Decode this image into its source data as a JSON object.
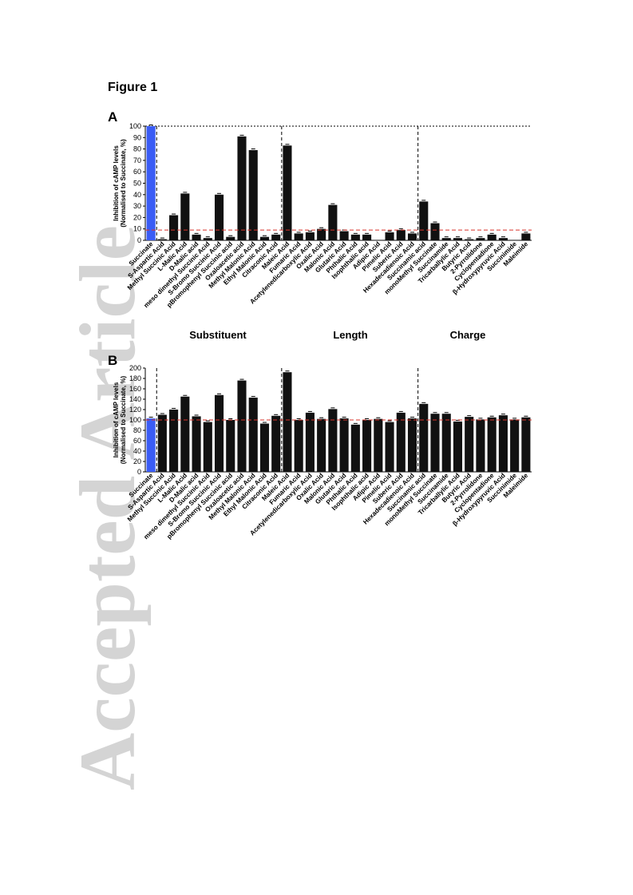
{
  "figure_label": "Figure 1",
  "watermark_text": "Accepted Article",
  "group_labels": [
    "Substituent",
    "Length",
    "Charge"
  ],
  "colors": {
    "bar": "#111111",
    "reference_bar": "#3a5cf5",
    "threshold_line": "#d9342b"
  },
  "chart_data": [
    {
      "type": "bar",
      "panel": "A",
      "ylabel": "Inhibition of cAMP levels (Normalised to Succinate, %)",
      "ylim": [
        0,
        100
      ],
      "yticks": [
        0,
        10,
        20,
        30,
        40,
        50,
        60,
        70,
        80,
        90,
        100
      ],
      "reference_line": 9,
      "top_dotted_line": 100,
      "groups": [
        {
          "label": "",
          "categories": [
            "Succinate"
          ]
        },
        {
          "label": "Substituent",
          "categories": [
            "S-Aspartic Acid",
            "Methyl Succinic Acid",
            "L-Malic Acid",
            "D-Malic acid",
            "meso dimethyl Succinic Acid",
            "S-Bromo Succinic Acid",
            "pBromophenyl Succinic acid",
            "Oxaloacetic acid",
            "Methyl Malonic Acid",
            "Ethyl Malonic Acid",
            "Citraconic Acid"
          ]
        },
        {
          "label": "Length",
          "categories": [
            "Maleic Acid",
            "Fumaric Acid",
            "Acetylenedicarboxylic Acid",
            "Oxalic Acid",
            "Malonic Acid",
            "Glutaric Acid",
            "Phthalic Acid",
            "Isophthalic acid",
            "Adipic Acid",
            "Pimelic Acid",
            "Suberic Acid",
            "Hexadecadienoic Acid"
          ]
        },
        {
          "label": "Charge",
          "categories": [
            "Succinamic acid",
            "monoMethyl Succinate",
            "Succinamide",
            "Tricarballylic Acid",
            "Butyric Acid",
            "2-Pyrrolidone",
            "Cyclopentadione",
            "β-Hydroxypyruvic Acid",
            "Succinimide",
            "Maleimide"
          ]
        }
      ],
      "values": [
        100,
        1,
        22,
        41,
        5,
        2,
        40,
        3,
        91,
        79,
        3,
        5,
        83,
        6,
        7,
        10,
        31,
        8,
        5,
        5,
        0,
        7,
        9,
        6,
        34,
        15,
        2,
        2,
        1,
        2,
        5,
        2,
        0,
        6
      ]
    },
    {
      "type": "bar",
      "panel": "B",
      "ylabel": "Inhibition of cAMP levels (Normalised to Succinate, %)",
      "ylim": [
        0,
        200
      ],
      "yticks": [
        0,
        20,
        40,
        60,
        80,
        100,
        120,
        140,
        160,
        180,
        200
      ],
      "reference_line": 100,
      "groups": [
        {
          "label": "",
          "categories": [
            "Succinate"
          ]
        },
        {
          "label": "Substituent",
          "categories": [
            "S-Aspartic Acid",
            "Methyl Succinic Acid",
            "L-Malic Acid",
            "D-Malic acid",
            "meso dimethyl Succinic Acid",
            "S-Bromo Succinic Acid",
            "pBromophenyl Succinic acid",
            "Oxaloacetic acid",
            "Methyl Malonic Acid",
            "Ethyl Malonic Acid",
            "Citraconic Acid"
          ]
        },
        {
          "label": "Length",
          "categories": [
            "Maleic Acid",
            "Fumaric Acid",
            "Acetylenedicarboxylic Acid",
            "Oxalic Acid",
            "Malonic Acid",
            "Glutaric Acid",
            "Phthalic Acid",
            "Isophthalic acid",
            "Adipic Acid",
            "Pimelic Acid",
            "Suberic Acid",
            "Hexadecadienoic Acid"
          ]
        },
        {
          "label": "Charge",
          "categories": [
            "Succinamic acid",
            "monoMethyl Succinate",
            "Succinamide",
            "Tricarballylic Acid",
            "Butyric Acid",
            "2-Pyrrolidone",
            "Cyclopentadione",
            "β-Hydroxypyruvic Acid",
            "Succinimide",
            "Maleimide"
          ]
        }
      ],
      "values": [
        103,
        110,
        120,
        145,
        107,
        96,
        148,
        100,
        176,
        143,
        93,
        108,
        192,
        100,
        114,
        102,
        121,
        103,
        91,
        100,
        102,
        96,
        114,
        103,
        131,
        112,
        112,
        97,
        106,
        101,
        105,
        109,
        101,
        105
      ]
    }
  ]
}
